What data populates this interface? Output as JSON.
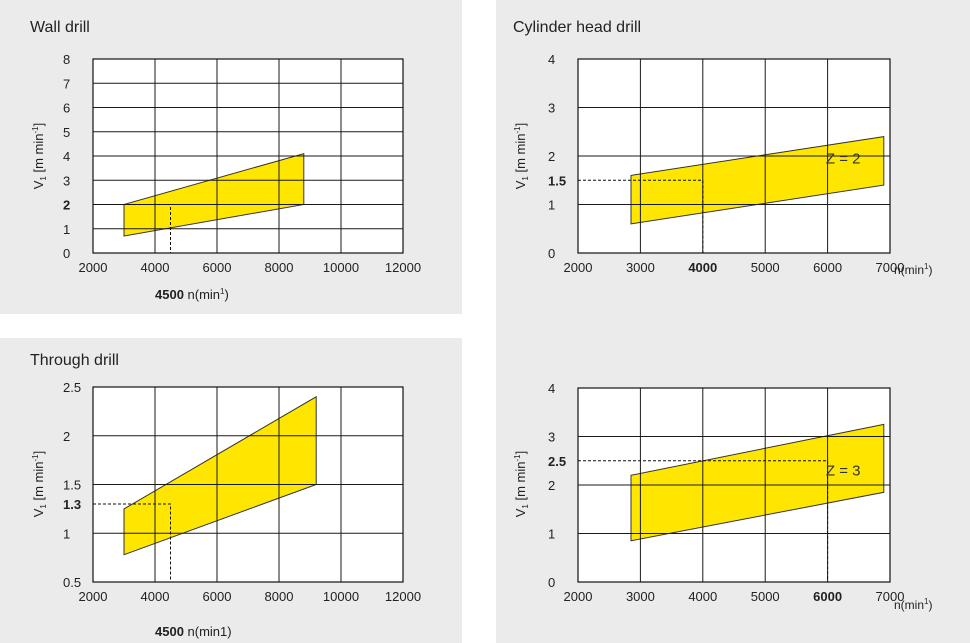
{
  "chart_data": [
    {
      "type": "area",
      "title": "Wall drill",
      "ylabel": "V",
      "ylabel_sub": "1",
      "ylabel_unit": "[m min",
      "ylabel_sup": "-1",
      "ylabel_end": "]",
      "xlabel": "n(min",
      "xlabel_sup": "1",
      "xlabel_end": ")",
      "xlim": [
        2000,
        12000
      ],
      "ylim": [
        0,
        8
      ],
      "x_ticks": [
        "2000",
        "4000",
        "6000",
        "8000",
        "10000",
        "12000"
      ],
      "y_ticks": [
        "0",
        "1",
        "2",
        "3",
        "4",
        "5",
        "6",
        "7",
        "8"
      ],
      "grid": true,
      "region": [
        [
          3000,
          0.7
        ],
        [
          8800,
          2.0
        ],
        [
          8800,
          4.1
        ],
        [
          3000,
          2.0
        ]
      ],
      "marker": {
        "x": 4500,
        "y": 2,
        "x_label": "4500",
        "y_label": "2"
      },
      "region_label": ""
    },
    {
      "type": "area",
      "title": "Cylinder head drill",
      "ylabel": "V",
      "ylabel_sub": "1",
      "ylabel_unit": "[m min",
      "ylabel_sup": "-1",
      "ylabel_end": "]",
      "xlabel": "n(min",
      "xlabel_sup": "1",
      "xlabel_end": ")",
      "xlim": [
        2000,
        7000
      ],
      "ylim": [
        0,
        4
      ],
      "x_ticks": [
        "2000",
        "3000",
        "4000",
        "5000",
        "6000",
        "7000"
      ],
      "y_ticks": [
        "0",
        "1",
        "2",
        "3",
        "4"
      ],
      "grid": true,
      "region": [
        [
          2850,
          0.6
        ],
        [
          6900,
          1.4
        ],
        [
          6900,
          2.4
        ],
        [
          2850,
          1.6
        ]
      ],
      "marker": {
        "x": 4000,
        "y": 1.5,
        "x_label": "4000",
        "y_label": "1.5"
      },
      "region_label": "Z = 2"
    },
    {
      "type": "area",
      "title": "Through drill",
      "ylabel": "V",
      "ylabel_sub": "1",
      "ylabel_unit": "[m min",
      "ylabel_sup": "-1",
      "ylabel_end": "]",
      "xlabel": "n(min1)",
      "xlabel_sup": "",
      "xlabel_end": "",
      "xlim": [
        2000,
        12000
      ],
      "ylim": [
        0.5,
        2.5
      ],
      "x_ticks": [
        "2000",
        "4000",
        "6000",
        "8000",
        "10000",
        "12000"
      ],
      "y_ticks": [
        "0.5",
        "1",
        "1.5",
        "2",
        "2.5"
      ],
      "y_tick_values": [
        0.5,
        1,
        1.5,
        2,
        2.5
      ],
      "grid": true,
      "region": [
        [
          3000,
          0.78
        ],
        [
          9200,
          1.5
        ],
        [
          9200,
          2.4
        ],
        [
          3000,
          1.25
        ]
      ],
      "marker": {
        "x": 4500,
        "y": 1.3,
        "x_label": "4500",
        "y_label": "1.3"
      },
      "region_label": ""
    },
    {
      "type": "area",
      "title": "",
      "ylabel": "V",
      "ylabel_sub": "1",
      "ylabel_unit": "[m min",
      "ylabel_sup": "-1",
      "ylabel_end": "]",
      "xlabel": "n(min",
      "xlabel_sup": "1",
      "xlabel_end": ")",
      "xlim": [
        2000,
        7000
      ],
      "ylim": [
        0,
        4
      ],
      "x_ticks": [
        "2000",
        "3000",
        "4000",
        "5000",
        "6000",
        "7000"
      ],
      "y_ticks": [
        "0",
        "1",
        "2",
        "3",
        "4"
      ],
      "grid": true,
      "region": [
        [
          2850,
          0.85
        ],
        [
          6900,
          1.85
        ],
        [
          6900,
          3.25
        ],
        [
          2850,
          2.2
        ]
      ],
      "marker": {
        "x": 6000,
        "y": 2.5,
        "x_label": "6000",
        "y_label": "2.5"
      },
      "region_label": "Z = 3"
    }
  ],
  "colors": {
    "fill": "#ffe600",
    "panel": "#ebebeb",
    "grid": "#1a1a1a"
  }
}
